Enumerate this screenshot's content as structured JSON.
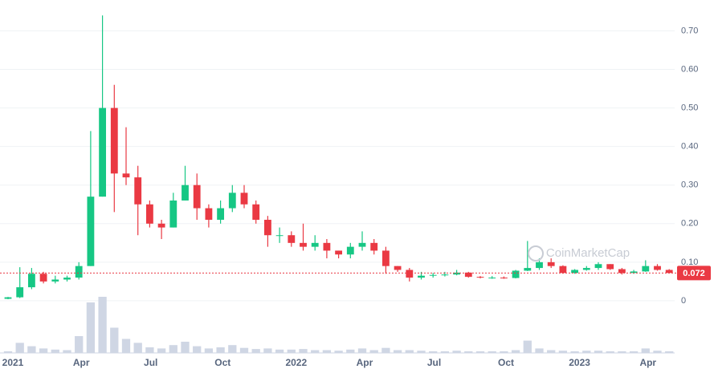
{
  "chart_data": {
    "type": "candlestick",
    "categories": [
      "2021",
      null,
      null,
      null,
      null,
      null,
      "Apr",
      null,
      null,
      null,
      null,
      null,
      "Jul",
      null,
      null,
      null,
      null,
      null,
      "Oct",
      null,
      null,
      null,
      null,
      null,
      "2022",
      null,
      null,
      null,
      null,
      null,
      "Apr",
      null,
      null,
      null,
      null,
      null,
      "Jul",
      null,
      null,
      null,
      null,
      null,
      "Oct",
      null,
      null,
      null,
      null,
      null,
      "2023",
      null,
      null,
      null,
      null,
      null,
      "Apr",
      null,
      null
    ],
    "open": [
      0.005,
      0.009,
      0.035,
      0.07,
      0.05,
      0.055,
      0.06,
      0.09,
      0.27,
      0.5,
      0.33,
      0.32,
      0.25,
      0.2,
      0.19,
      0.26,
      0.3,
      0.24,
      0.21,
      0.24,
      0.28,
      0.25,
      0.21,
      0.17,
      0.17,
      0.15,
      0.14,
      0.15,
      0.13,
      0.12,
      0.14,
      0.15,
      0.13,
      0.09,
      0.08,
      0.06,
      0.065,
      0.067,
      0.068,
      0.073,
      0.062,
      0.06,
      0.06,
      0.059,
      0.078,
      0.085,
      0.1,
      0.09,
      0.072,
      0.08,
      0.085,
      0.095,
      0.082,
      0.072,
      0.076,
      0.09,
      0.08
    ],
    "high": [
      0.01,
      0.087,
      0.085,
      0.075,
      0.065,
      0.065,
      0.1,
      0.44,
      0.74,
      0.56,
      0.45,
      0.35,
      0.26,
      0.21,
      0.28,
      0.35,
      0.33,
      0.25,
      0.26,
      0.3,
      0.3,
      0.26,
      0.22,
      0.19,
      0.18,
      0.2,
      0.17,
      0.16,
      0.13,
      0.15,
      0.18,
      0.16,
      0.14,
      0.09,
      0.085,
      0.075,
      0.072,
      0.075,
      0.08,
      0.075,
      0.064,
      0.064,
      0.063,
      0.08,
      0.155,
      0.11,
      0.11,
      0.092,
      0.082,
      0.09,
      0.1,
      0.095,
      0.085,
      0.08,
      0.105,
      0.095,
      0.082
    ],
    "low": [
      0.004,
      0.007,
      0.03,
      0.045,
      0.045,
      0.05,
      0.055,
      0.09,
      0.27,
      0.23,
      0.3,
      0.17,
      0.19,
      0.16,
      0.19,
      0.26,
      0.21,
      0.19,
      0.2,
      0.23,
      0.24,
      0.2,
      0.14,
      0.15,
      0.14,
      0.13,
      0.13,
      0.11,
      0.11,
      0.11,
      0.13,
      0.12,
      0.07,
      0.075,
      0.05,
      0.055,
      0.06,
      0.063,
      0.066,
      0.06,
      0.058,
      0.057,
      0.057,
      0.058,
      0.077,
      0.08,
      0.085,
      0.07,
      0.07,
      0.078,
      0.08,
      0.08,
      0.068,
      0.07,
      0.075,
      0.078,
      0.071
    ],
    "close": [
      0.009,
      0.035,
      0.07,
      0.05,
      0.055,
      0.06,
      0.09,
      0.27,
      0.5,
      0.33,
      0.32,
      0.25,
      0.2,
      0.19,
      0.26,
      0.3,
      0.24,
      0.21,
      0.24,
      0.28,
      0.25,
      0.21,
      0.17,
      0.17,
      0.15,
      0.14,
      0.15,
      0.13,
      0.12,
      0.14,
      0.15,
      0.13,
      0.09,
      0.08,
      0.06,
      0.065,
      0.067,
      0.068,
      0.073,
      0.062,
      0.06,
      0.06,
      0.059,
      0.078,
      0.085,
      0.1,
      0.09,
      0.072,
      0.08,
      0.085,
      0.095,
      0.082,
      0.072,
      0.076,
      0.09,
      0.08,
      0.072
    ],
    "volume": [
      3,
      18,
      12,
      8,
      6,
      5,
      30,
      90,
      100,
      45,
      25,
      18,
      10,
      8,
      14,
      20,
      12,
      8,
      10,
      14,
      9,
      7,
      8,
      6,
      6,
      7,
      5,
      5,
      4,
      6,
      8,
      5,
      9,
      5,
      5,
      4,
      3,
      3,
      4,
      3,
      3,
      3,
      3,
      5,
      22,
      8,
      5,
      4,
      3,
      4,
      4,
      3,
      3,
      3,
      8,
      4,
      3
    ],
    "up_color": "#16c784",
    "down_color": "#ea3943",
    "volume_color": "#cfd6e4",
    "current_price": {
      "value": 0.072,
      "label": "0.072"
    },
    "price_color": "#ea3943",
    "watermark": "CoinMarketCap",
    "ylim": [
      -0.1,
      0.78
    ],
    "yticks": [
      0,
      {
        "value": 0.1,
        "label": "0.10"
      },
      {
        "value": 0.2,
        "label": "0.20"
      },
      {
        "value": 0.3,
        "label": "0.30"
      },
      {
        "value": 0.4,
        "label": "0.40"
      },
      {
        "value": 0.5,
        "label": "0.50"
      },
      {
        "value": 0.6,
        "label": "0.60"
      },
      {
        "value": 0.7,
        "label": "0.70"
      }
    ],
    "grid": true
  }
}
